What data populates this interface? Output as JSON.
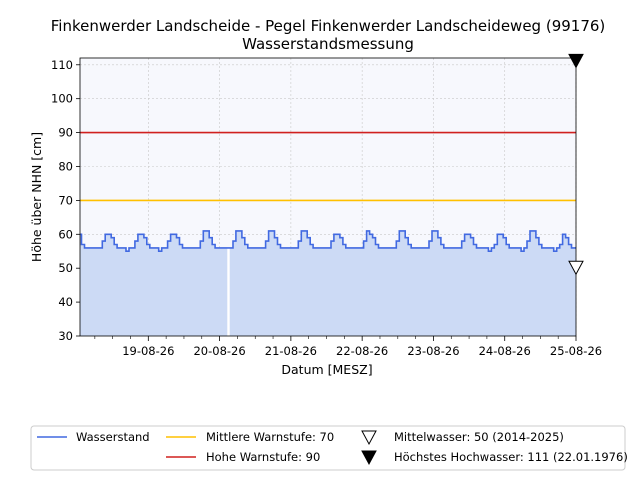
{
  "chart_data": {
    "type": "line",
    "title": "Finkenwerder Landscheide - Pegel Finkenwerder Landscheideweg (99176)",
    "subtitle": "Wasserstandsmessung",
    "xlabel": "Datum [MESZ]",
    "ylabel": "Höhe über NHN [cm]",
    "ylim": [
      30,
      112
    ],
    "xlim": [
      "2026-08-18 01:00",
      "2026-08-25 00:00"
    ],
    "yticks": [
      30,
      40,
      50,
      60,
      70,
      80,
      90,
      100,
      110
    ],
    "xticks": [
      "19-08-26",
      "20-08-26",
      "21-08-26",
      "22-08-26",
      "23-08-26",
      "24-08-26",
      "25-08-26"
    ],
    "xtick_days": [
      1,
      2,
      3,
      4,
      5,
      6,
      7
    ],
    "grid": true,
    "legend_position": "bottom",
    "series": [
      {
        "name": "Wasserstand",
        "color": "#4169e1",
        "fill": "#ccdaf5",
        "x_unit": "hours since 18-08-26 00:00",
        "x": [
          1,
          2,
          3,
          4,
          5,
          6,
          7,
          8,
          9,
          10,
          11,
          12,
          13,
          14,
          15,
          16,
          17,
          18,
          19,
          20,
          21,
          22,
          23,
          24,
          25,
          26,
          27,
          28,
          29,
          30,
          31,
          32,
          33,
          34,
          35,
          36,
          37,
          38,
          39,
          40,
          41,
          42,
          43,
          44,
          45,
          46,
          47,
          48,
          49,
          50,
          51,
          52,
          53,
          54,
          55,
          56,
          57,
          58,
          59,
          60,
          61,
          62,
          63,
          64,
          65,
          66,
          67,
          68,
          69,
          70,
          71,
          72,
          73,
          74,
          75,
          76,
          77,
          78,
          79,
          80,
          81,
          82,
          83,
          84,
          85,
          86,
          87,
          88,
          89,
          90,
          91,
          92,
          93,
          94,
          95,
          96,
          97,
          98,
          99,
          100,
          101,
          102,
          103,
          104,
          105,
          106,
          107,
          108,
          109,
          110,
          111,
          112,
          113,
          114,
          115,
          116,
          117,
          118,
          119,
          120,
          121,
          122,
          123,
          124,
          125,
          126,
          127,
          128,
          129,
          130,
          131,
          132,
          133,
          134,
          135,
          136,
          137,
          138,
          139,
          140,
          141,
          142,
          143,
          144,
          145,
          146,
          147,
          148,
          149,
          150,
          151,
          152,
          153,
          154,
          155,
          156,
          157,
          158,
          159,
          160,
          161,
          162,
          163,
          164,
          165,
          166,
          167,
          168
        ],
        "values": [
          60,
          57,
          56,
          56,
          56,
          56,
          56,
          56,
          58,
          60,
          60,
          59,
          57,
          56,
          56,
          56,
          55,
          56,
          56,
          58,
          60,
          60,
          59,
          57,
          56,
          56,
          56,
          55,
          56,
          56,
          58,
          60,
          60,
          59,
          57,
          56,
          56,
          56,
          56,
          56,
          56,
          58,
          61,
          61,
          59,
          57,
          56,
          56,
          56,
          56,
          56,
          56,
          58,
          61,
          61,
          59,
          57,
          56,
          56,
          56,
          56,
          56,
          56,
          58,
          61,
          61,
          59,
          57,
          56,
          56,
          56,
          56,
          56,
          56,
          58,
          61,
          61,
          59,
          57,
          56,
          56,
          56,
          56,
          56,
          56,
          58,
          60,
          60,
          59,
          57,
          56,
          56,
          56,
          56,
          56,
          56,
          58,
          61,
          60,
          59,
          57,
          56,
          56,
          56,
          56,
          56,
          56,
          58,
          61,
          61,
          59,
          57,
          56,
          56,
          56,
          56,
          56,
          56,
          58,
          61,
          61,
          59,
          57,
          56,
          56,
          56,
          56,
          56,
          56,
          58,
          60,
          60,
          59,
          57,
          56,
          56,
          56,
          56,
          55,
          56,
          57,
          60,
          60,
          59,
          57,
          56,
          56,
          56,
          56,
          55,
          56,
          58,
          61,
          61,
          59,
          57,
          56,
          56,
          56,
          56,
          55,
          56,
          57,
          60,
          59,
          57,
          56,
          56
        ]
      }
    ],
    "reference_lines": [
      {
        "name": "Mittlere Warnstufe: 70",
        "value": 70,
        "color": "#ffc000"
      },
      {
        "name": "Hohe Warnstufe: 90",
        "value": 90,
        "color": "#d0201f"
      }
    ],
    "markers": [
      {
        "name": "Mittelwasser: 50 (2014-2025)",
        "value": 50,
        "style": "hollow-triangle-down"
      },
      {
        "name": "Höchstes Hochwasser: 111 (22.01.1976)",
        "value": 111,
        "style": "filled-triangle-down"
      }
    ],
    "annotations": [
      {
        "type": "vertical-gap",
        "x_hours": 51
      }
    ]
  }
}
